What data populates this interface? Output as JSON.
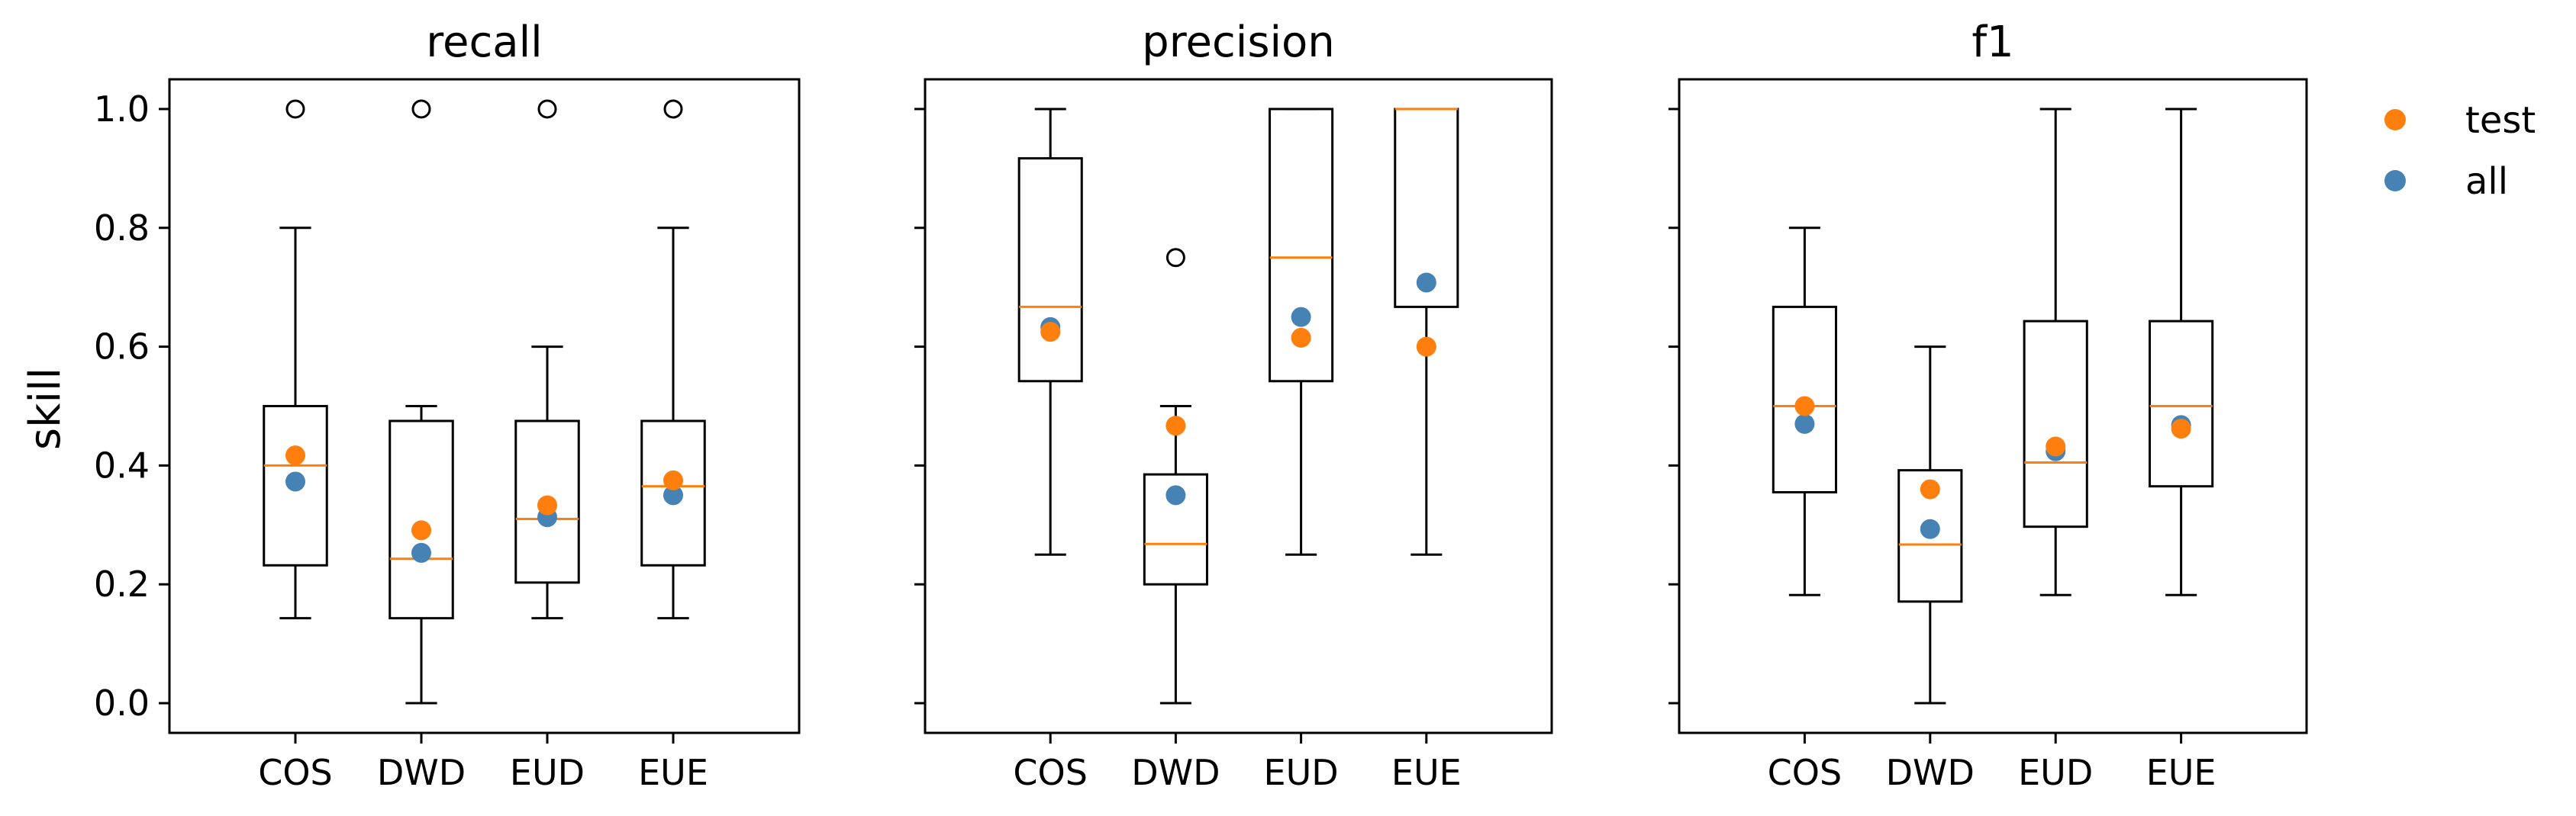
{
  "chart_data": {
    "type": "box",
    "ylabel": "skill",
    "ylim": [
      -0.05,
      1.05
    ],
    "yticks": [
      "0.0",
      "0.2",
      "0.4",
      "0.6",
      "0.8",
      "1.0"
    ],
    "categories": [
      "COS",
      "DWD",
      "EUD",
      "EUE"
    ],
    "colors": {
      "test": "#ff7f0e",
      "all": "#4682b4",
      "median": "#ff7f0e",
      "box": "#000000"
    },
    "legend": {
      "placement": "top-right-outside",
      "entries": [
        {
          "label": "test",
          "color": "#ff7f0e"
        },
        {
          "label": "all",
          "color": "#4682b4"
        }
      ]
    },
    "panels": [
      {
        "title": "recall",
        "boxes": [
          {
            "category": "COS",
            "whisker_low": 0.143,
            "q1": 0.232,
            "median": 0.4,
            "q3": 0.5,
            "whisker_high": 0.8,
            "outliers": [
              1.0
            ],
            "test": 0.417,
            "all": 0.373
          },
          {
            "category": "DWD",
            "whisker_low": 0.0,
            "q1": 0.143,
            "median": 0.243,
            "q3": 0.475,
            "whisker_high": 0.5,
            "outliers": [
              1.0
            ],
            "test": 0.291,
            "all": 0.253
          },
          {
            "category": "EUD",
            "whisker_low": 0.143,
            "q1": 0.203,
            "median": 0.31,
            "q3": 0.475,
            "whisker_high": 0.6,
            "outliers": [
              1.0
            ],
            "test": 0.333,
            "all": 0.313
          },
          {
            "category": "EUE",
            "whisker_low": 0.143,
            "q1": 0.232,
            "median": 0.365,
            "q3": 0.475,
            "whisker_high": 0.8,
            "outliers": [
              1.0
            ],
            "test": 0.375,
            "all": 0.35
          }
        ]
      },
      {
        "title": "precision",
        "boxes": [
          {
            "category": "COS",
            "whisker_low": 0.25,
            "q1": 0.542,
            "median": 0.667,
            "q3": 0.917,
            "whisker_high": 1.0,
            "outliers": [],
            "test": 0.625,
            "all": 0.633
          },
          {
            "category": "DWD",
            "whisker_low": 0.0,
            "q1": 0.2,
            "median": 0.268,
            "q3": 0.385,
            "whisker_high": 0.5,
            "outliers": [
              0.75
            ],
            "test": 0.467,
            "all": 0.35
          },
          {
            "category": "EUD",
            "whisker_low": 0.25,
            "q1": 0.542,
            "median": 0.75,
            "q3": 1.0,
            "whisker_high": 1.0,
            "outliers": [],
            "test": 0.615,
            "all": 0.65
          },
          {
            "category": "EUE",
            "whisker_low": 0.25,
            "q1": 0.667,
            "median": 1.0,
            "q3": 1.0,
            "whisker_high": 1.0,
            "outliers": [],
            "test": 0.6,
            "all": 0.708
          }
        ]
      },
      {
        "title": "f1",
        "boxes": [
          {
            "category": "COS",
            "whisker_low": 0.182,
            "q1": 0.355,
            "median": 0.5,
            "q3": 0.667,
            "whisker_high": 0.8,
            "outliers": [],
            "test": 0.5,
            "all": 0.47
          },
          {
            "category": "DWD",
            "whisker_low": 0.0,
            "q1": 0.171,
            "median": 0.267,
            "q3": 0.392,
            "whisker_high": 0.6,
            "outliers": [],
            "test": 0.36,
            "all": 0.293
          },
          {
            "category": "EUD",
            "whisker_low": 0.182,
            "q1": 0.297,
            "median": 0.405,
            "q3": 0.643,
            "whisker_high": 1.0,
            "outliers": [],
            "test": 0.432,
            "all": 0.424
          },
          {
            "category": "EUE",
            "whisker_low": 0.182,
            "q1": 0.365,
            "median": 0.5,
            "q3": 0.643,
            "whisker_high": 1.0,
            "outliers": [],
            "test": 0.462,
            "all": 0.468
          }
        ]
      }
    ]
  }
}
